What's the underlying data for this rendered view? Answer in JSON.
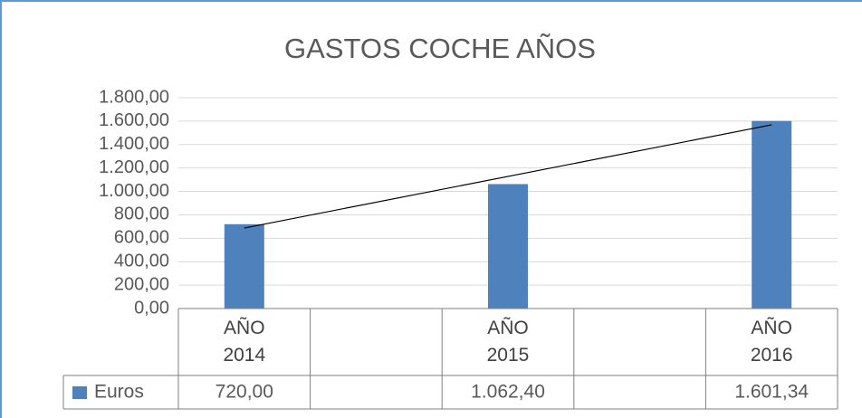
{
  "chart_data": {
    "type": "bar",
    "title": "GASTOS COCHE AÑOS",
    "categories": [
      "AÑO 2014",
      null,
      "AÑO 2015",
      null,
      "AÑO 2016"
    ],
    "series": [
      {
        "name": "Euros",
        "color": "#4f81bd",
        "values": [
          720,
          null,
          1062.4,
          null,
          1601.34
        ],
        "value_labels": [
          "720,00",
          null,
          "1.062,40",
          null,
          "1.601,34"
        ]
      }
    ],
    "ylim": [
      0,
      1800
    ],
    "yticks": [
      {
        "value": 0,
        "label": "0,00"
      },
      {
        "value": 200,
        "label": "200,00"
      },
      {
        "value": 400,
        "label": "400,00"
      },
      {
        "value": 600,
        "label": "600,00"
      },
      {
        "value": 800,
        "label": "800,00"
      },
      {
        "value": 1000,
        "label": "1.000,00"
      },
      {
        "value": 1200,
        "label": "1.200,00"
      },
      {
        "value": 1400,
        "label": "1.400,00"
      },
      {
        "value": 1600,
        "label": "1.600,00"
      },
      {
        "value": 1800,
        "label": "1.800,00"
      }
    ],
    "grid": true,
    "trendline": "linear",
    "data_table": true
  }
}
